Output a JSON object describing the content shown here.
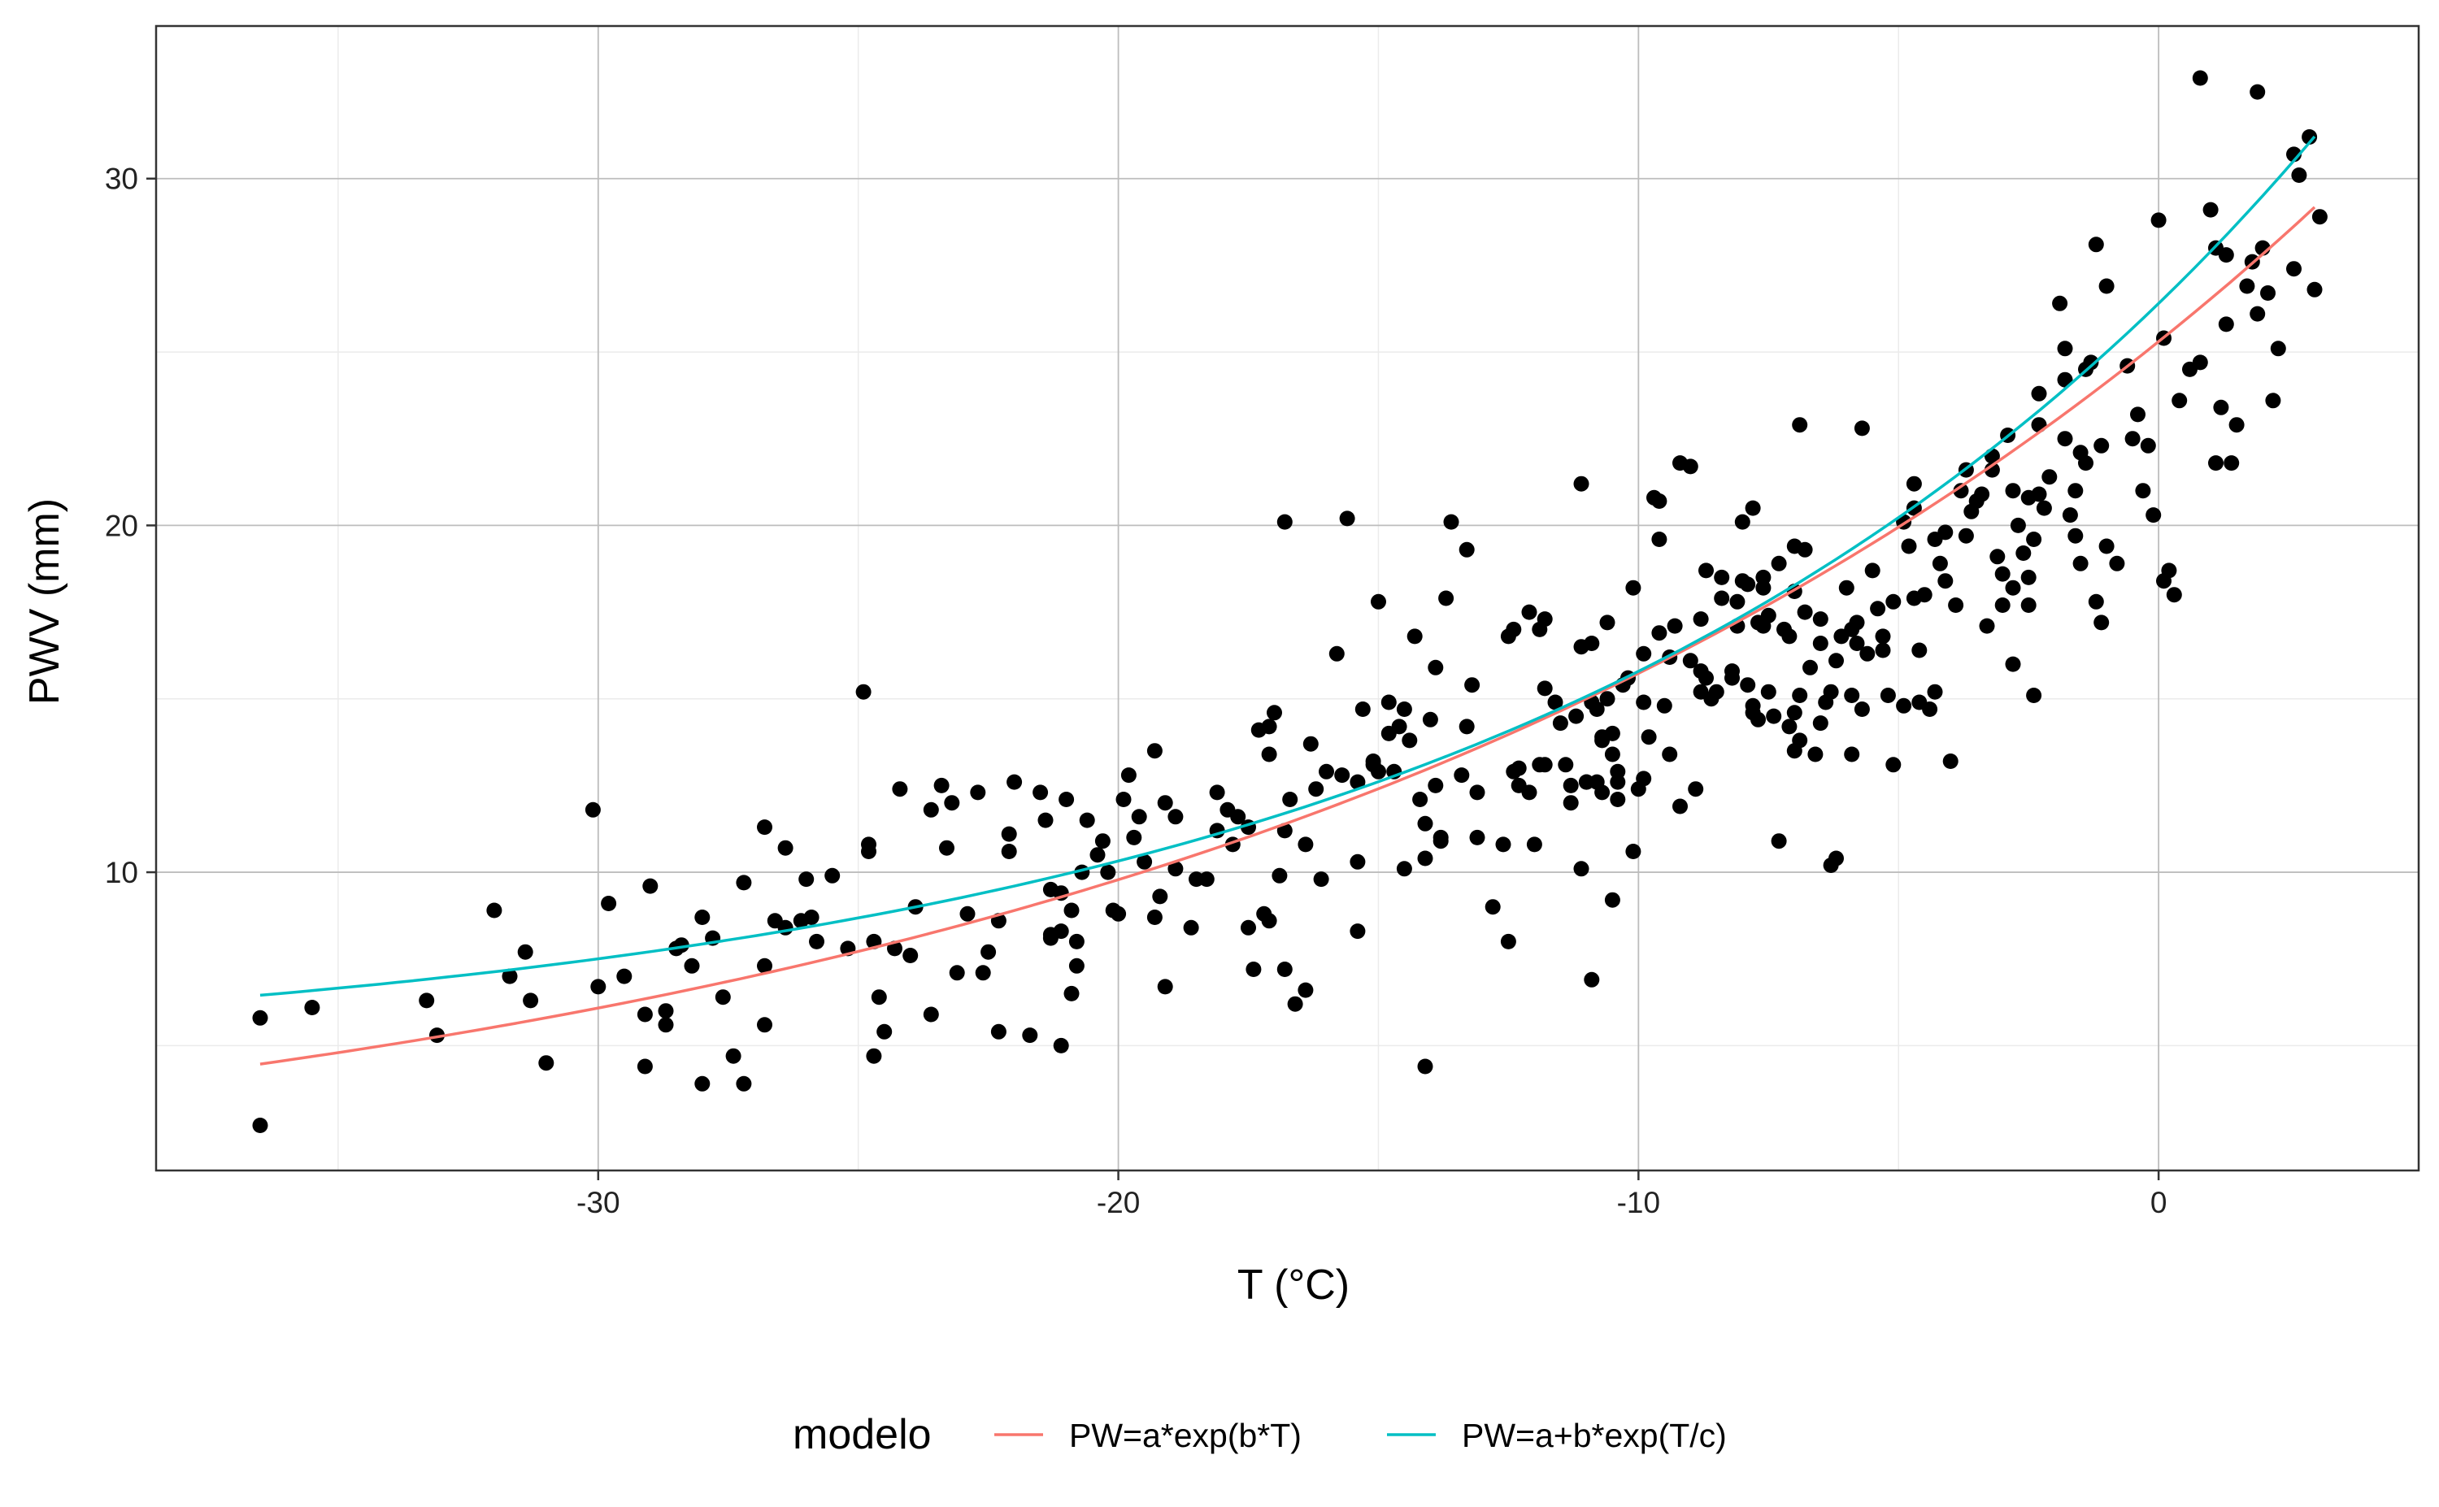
{
  "chart_data": {
    "type": "scatter",
    "xlabel": "T (°C)",
    "ylabel": "PWV (mm)",
    "xlim": [
      -38.5,
      5.0
    ],
    "ylim": [
      1.4,
      34.4
    ],
    "x_ticks": [
      -30,
      -20,
      -10,
      0
    ],
    "x_tick_labels": [
      "-30",
      "-20",
      "-10",
      "0"
    ],
    "y_ticks": [
      10,
      20,
      30
    ],
    "y_tick_labels": [
      "10",
      "20",
      "30"
    ],
    "grid": true,
    "legend": {
      "title": "modelo",
      "position": "bottom",
      "entries": [
        {
          "label": "PW=a*exp(b*T)",
          "color": "#F8766D"
        },
        {
          "label": "PW=a+b*exp(T/c)",
          "color": "#00BFC4"
        }
      ]
    },
    "series": [
      {
        "type": "line",
        "legend_index": 0,
        "color": "#F8766D",
        "formula": "a*exp(b*T)",
        "params": {
          "a": 25.3,
          "b": 0.0475
        },
        "x_range": [
          -36.5,
          3.0
        ]
      },
      {
        "type": "line",
        "legend_index": 1,
        "color": "#00BFC4",
        "formula": "a+b*exp(T/c)",
        "params": {
          "a": 4.5,
          "b": 21.9,
          "c": 15.1
        },
        "x_range": [
          -36.5,
          3.0
        ]
      }
    ],
    "points": [
      [
        -36.5,
        5.8
      ],
      [
        -36.5,
        2.7
      ],
      [
        -35.5,
        6.1
      ],
      [
        -33.3,
        6.3
      ],
      [
        -33.1,
        5.3
      ],
      [
        -32.0,
        8.9
      ],
      [
        -31.7,
        7.0
      ],
      [
        -31.4,
        7.7
      ],
      [
        -31.3,
        6.3
      ],
      [
        -31.0,
        4.5
      ],
      [
        -30.1,
        11.8
      ],
      [
        -30.0,
        6.7
      ],
      [
        -29.8,
        9.1
      ],
      [
        -29.5,
        7.0
      ],
      [
        -29.1,
        5.9
      ],
      [
        -29.1,
        4.4
      ],
      [
        -29.0,
        9.6
      ],
      [
        -28.7,
        5.6
      ],
      [
        -28.7,
        6.0
      ],
      [
        -28.5,
        7.8
      ],
      [
        -28.4,
        7.9
      ],
      [
        -28.2,
        7.3
      ],
      [
        -28.0,
        8.7
      ],
      [
        -28.0,
        3.9
      ],
      [
        -27.8,
        8.1
      ],
      [
        -27.6,
        6.4
      ],
      [
        -27.4,
        4.7
      ],
      [
        -27.2,
        9.7
      ],
      [
        -27.2,
        3.9
      ],
      [
        -26.8,
        7.3
      ],
      [
        -26.8,
        5.6
      ],
      [
        -26.8,
        11.3
      ],
      [
        -26.6,
        8.6
      ],
      [
        -26.4,
        10.7
      ],
      [
        -26.4,
        8.4
      ],
      [
        -26.1,
        8.6
      ],
      [
        -26.0,
        9.8
      ],
      [
        -25.9,
        8.7
      ],
      [
        -25.8,
        8.0
      ],
      [
        -25.5,
        9.9
      ],
      [
        -25.2,
        7.8
      ],
      [
        -24.9,
        15.2
      ],
      [
        -24.8,
        10.8
      ],
      [
        -24.8,
        10.6
      ],
      [
        -24.7,
        8.0
      ],
      [
        -24.7,
        4.7
      ],
      [
        -24.6,
        6.4
      ],
      [
        -24.5,
        5.4
      ],
      [
        -24.3,
        7.8
      ],
      [
        -24.2,
        12.4
      ],
      [
        -24.0,
        7.6
      ],
      [
        -23.9,
        9.0
      ],
      [
        -23.6,
        11.8
      ],
      [
        -23.6,
        5.9
      ],
      [
        -23.4,
        12.5
      ],
      [
        -23.3,
        10.7
      ],
      [
        -23.2,
        12.0
      ],
      [
        -23.1,
        7.1
      ],
      [
        -22.9,
        8.8
      ],
      [
        -22.7,
        12.3
      ],
      [
        -22.6,
        7.1
      ],
      [
        -22.5,
        7.7
      ],
      [
        -22.3,
        8.6
      ],
      [
        -22.3,
        5.4
      ],
      [
        -22.1,
        11.1
      ],
      [
        -22.1,
        10.6
      ],
      [
        -22.0,
        12.6
      ],
      [
        -21.7,
        5.3
      ],
      [
        -21.5,
        12.3
      ],
      [
        -21.4,
        11.5
      ],
      [
        -21.3,
        9.5
      ],
      [
        -21.3,
        8.1
      ],
      [
        -21.3,
        8.2
      ],
      [
        -21.1,
        9.4
      ],
      [
        -21.1,
        8.3
      ],
      [
        -21.1,
        5.0
      ],
      [
        -21.0,
        12.1
      ],
      [
        -20.9,
        8.9
      ],
      [
        -20.9,
        6.5
      ],
      [
        -20.8,
        8.0
      ],
      [
        -20.8,
        7.3
      ],
      [
        -20.7,
        10.0
      ],
      [
        -20.6,
        11.5
      ],
      [
        -20.4,
        10.5
      ],
      [
        -20.3,
        10.9
      ],
      [
        -20.2,
        10.0
      ],
      [
        -20.1,
        8.9
      ],
      [
        -20.0,
        8.8
      ],
      [
        -19.9,
        12.1
      ],
      [
        -19.8,
        12.8
      ],
      [
        -19.7,
        11.0
      ],
      [
        -19.6,
        11.6
      ],
      [
        -19.5,
        10.3
      ],
      [
        -19.3,
        8.7
      ],
      [
        -19.3,
        13.5
      ],
      [
        -19.2,
        9.3
      ],
      [
        -19.1,
        6.7
      ],
      [
        -19.1,
        12.0
      ],
      [
        -18.9,
        11.6
      ],
      [
        -18.9,
        10.1
      ],
      [
        -18.6,
        8.4
      ],
      [
        -18.5,
        9.8
      ],
      [
        -18.3,
        9.8
      ],
      [
        -18.1,
        12.3
      ],
      [
        -18.1,
        11.2
      ],
      [
        -17.9,
        11.8
      ],
      [
        -17.8,
        10.8
      ],
      [
        -17.7,
        11.6
      ],
      [
        -17.5,
        11.3
      ],
      [
        -17.5,
        8.4
      ],
      [
        -17.4,
        7.2
      ],
      [
        -17.3,
        14.1
      ],
      [
        -17.2,
        8.8
      ],
      [
        -17.1,
        14.2
      ],
      [
        -17.1,
        8.6
      ],
      [
        -17.1,
        13.4
      ],
      [
        -17.0,
        14.6
      ],
      [
        -16.9,
        9.9
      ],
      [
        -16.8,
        7.2
      ],
      [
        -16.8,
        11.2
      ],
      [
        -16.8,
        20.1
      ],
      [
        -16.7,
        12.1
      ],
      [
        -16.6,
        6.2
      ],
      [
        -16.4,
        10.8
      ],
      [
        -16.4,
        6.6
      ],
      [
        -16.3,
        13.7
      ],
      [
        -16.2,
        12.4
      ],
      [
        -16.1,
        9.8
      ],
      [
        -16.0,
        12.9
      ],
      [
        -15.8,
        16.3
      ],
      [
        -15.7,
        12.8
      ],
      [
        -15.6,
        20.2
      ],
      [
        -15.4,
        8.3
      ],
      [
        -15.4,
        12.6
      ],
      [
        -15.4,
        10.3
      ],
      [
        -15.3,
        14.7
      ],
      [
        -15.1,
        13.2
      ],
      [
        -15.1,
        13.1
      ],
      [
        -15.0,
        17.8
      ],
      [
        -15.0,
        12.9
      ],
      [
        -14.8,
        14.0
      ],
      [
        -14.8,
        14.9
      ],
      [
        -14.7,
        12.9
      ],
      [
        -14.6,
        14.2
      ],
      [
        -14.5,
        14.7
      ],
      [
        -14.5,
        10.1
      ],
      [
        -14.4,
        13.8
      ],
      [
        -14.3,
        16.8
      ],
      [
        -14.2,
        12.1
      ],
      [
        -14.1,
        11.4
      ],
      [
        -14.1,
        4.4
      ],
      [
        -14.1,
        10.4
      ],
      [
        -14.0,
        14.4
      ],
      [
        -13.9,
        12.5
      ],
      [
        -13.9,
        15.9
      ],
      [
        -13.8,
        10.9
      ],
      [
        -13.8,
        11.0
      ],
      [
        -13.7,
        17.9
      ],
      [
        -13.6,
        20.1
      ],
      [
        -13.4,
        12.8
      ],
      [
        -13.3,
        14.2
      ],
      [
        -13.3,
        19.3
      ],
      [
        -13.2,
        15.4
      ],
      [
        -13.1,
        11.0
      ],
      [
        -13.1,
        12.3
      ],
      [
        -12.8,
        9.0
      ],
      [
        -12.6,
        10.8
      ],
      [
        -12.5,
        16.8
      ],
      [
        -12.5,
        8.0
      ],
      [
        -12.4,
        17.0
      ],
      [
        -12.4,
        12.9
      ],
      [
        -12.3,
        13.0
      ],
      [
        -12.3,
        12.5
      ],
      [
        -12.1,
        17.5
      ],
      [
        -12.1,
        12.3
      ],
      [
        -12.0,
        10.8
      ],
      [
        -11.9,
        17.0
      ],
      [
        -11.9,
        13.1
      ],
      [
        -11.8,
        17.3
      ],
      [
        -11.8,
        15.3
      ],
      [
        -11.8,
        13.1
      ],
      [
        -11.6,
        14.9
      ],
      [
        -11.5,
        14.3
      ],
      [
        -11.4,
        13.1
      ],
      [
        -11.3,
        12.0
      ],
      [
        -11.3,
        12.5
      ],
      [
        -11.2,
        14.5
      ],
      [
        -11.1,
        10.1
      ],
      [
        -11.1,
        16.5
      ],
      [
        -11.1,
        21.2
      ],
      [
        -11.0,
        12.6
      ],
      [
        -11.0,
        12.6
      ],
      [
        -10.9,
        14.9
      ],
      [
        -10.9,
        16.6
      ],
      [
        -10.9,
        6.9
      ],
      [
        -10.8,
        12.6
      ],
      [
        -10.8,
        14.7
      ],
      [
        -10.7,
        13.9
      ],
      [
        -10.7,
        12.3
      ],
      [
        -10.7,
        13.8
      ],
      [
        -10.6,
        15.0
      ],
      [
        -10.6,
        17.2
      ],
      [
        -10.5,
        9.2
      ],
      [
        -10.5,
        13.4
      ],
      [
        -10.5,
        14.0
      ],
      [
        -10.4,
        12.9
      ],
      [
        -10.4,
        12.6
      ],
      [
        -10.4,
        12.1
      ],
      [
        -10.3,
        15.4
      ],
      [
        -10.2,
        15.6
      ],
      [
        -10.1,
        10.6
      ],
      [
        -10.1,
        18.2
      ],
      [
        -10.0,
        12.4
      ],
      [
        -9.9,
        14.9
      ],
      [
        -9.9,
        16.3
      ],
      [
        -9.9,
        12.7
      ],
      [
        -9.8,
        13.9
      ],
      [
        -9.7,
        20.8
      ],
      [
        -9.6,
        19.6
      ],
      [
        -9.6,
        16.9
      ],
      [
        -9.6,
        20.7
      ],
      [
        -9.5,
        14.8
      ],
      [
        -9.4,
        16.2
      ],
      [
        -9.4,
        13.4
      ],
      [
        -9.3,
        17.1
      ],
      [
        -9.2,
        11.9
      ],
      [
        -9.2,
        21.8
      ],
      [
        -9.0,
        21.7
      ],
      [
        -9.0,
        16.1
      ],
      [
        -8.9,
        12.4
      ],
      [
        -8.8,
        15.2
      ],
      [
        -8.8,
        17.3
      ],
      [
        -8.8,
        15.8
      ],
      [
        -8.7,
        15.6
      ],
      [
        -8.7,
        18.7
      ],
      [
        -8.6,
        15.0
      ],
      [
        -8.5,
        15.2
      ],
      [
        -8.4,
        17.9
      ],
      [
        -8.4,
        18.5
      ],
      [
        -8.2,
        15.8
      ],
      [
        -8.2,
        15.6
      ],
      [
        -8.1,
        17.1
      ],
      [
        -8.1,
        17.8
      ],
      [
        -8.0,
        18.4
      ],
      [
        -7.9,
        15.4
      ],
      [
        -7.9,
        18.3
      ],
      [
        -7.8,
        14.8
      ],
      [
        -7.8,
        14.6
      ],
      [
        -7.8,
        20.5
      ],
      [
        -7.7,
        17.2
      ],
      [
        -7.7,
        14.4
      ],
      [
        -7.6,
        18.2
      ],
      [
        -7.6,
        18.5
      ],
      [
        -7.6,
        17.1
      ],
      [
        -7.5,
        17.4
      ],
      [
        -7.5,
        15.2
      ],
      [
        -7.4,
        14.5
      ],
      [
        -7.3,
        18.9
      ],
      [
        -7.3,
        10.9
      ],
      [
        -7.2,
        17.0
      ],
      [
        -7.1,
        14.2
      ],
      [
        -7.1,
        16.8
      ],
      [
        -7.0,
        14.6
      ],
      [
        -7.0,
        19.4
      ],
      [
        -7.0,
        13.5
      ],
      [
        -7.0,
        18.1
      ],
      [
        -6.9,
        22.9
      ],
      [
        -6.9,
        13.8
      ],
      [
        -6.9,
        15.1
      ],
      [
        -6.8,
        17.5
      ],
      [
        -6.8,
        19.3
      ],
      [
        -6.7,
        15.9
      ],
      [
        -6.6,
        13.4
      ],
      [
        -6.5,
        17.3
      ],
      [
        -6.5,
        14.3
      ],
      [
        -6.5,
        16.6
      ],
      [
        -6.4,
        14.9
      ],
      [
        -6.3,
        15.2
      ],
      [
        -6.3,
        10.2
      ],
      [
        -6.2,
        10.4
      ],
      [
        -6.2,
        16.1
      ],
      [
        -6.1,
        16.8
      ],
      [
        -6.0,
        18.2
      ],
      [
        -5.9,
        17.0
      ],
      [
        -5.9,
        15.1
      ],
      [
        -5.9,
        13.4
      ],
      [
        -5.8,
        16.6
      ],
      [
        -5.8,
        17.2
      ],
      [
        -5.7,
        14.7
      ],
      [
        -5.7,
        22.8
      ],
      [
        -5.6,
        16.3
      ],
      [
        -5.5,
        18.7
      ],
      [
        -5.4,
        17.6
      ],
      [
        -5.3,
        16.4
      ],
      [
        -5.3,
        16.8
      ],
      [
        -5.2,
        15.1
      ],
      [
        -5.1,
        17.8
      ],
      [
        -5.1,
        13.1
      ],
      [
        -4.9,
        20.1
      ],
      [
        -4.9,
        14.8
      ],
      [
        -4.8,
        19.4
      ],
      [
        -4.7,
        21.2
      ],
      [
        -4.7,
        20.5
      ],
      [
        -4.7,
        17.9
      ],
      [
        -4.6,
        16.4
      ],
      [
        -4.6,
        14.9
      ],
      [
        -4.5,
        18.0
      ],
      [
        -4.4,
        14.7
      ],
      [
        -4.3,
        19.6
      ],
      [
        -4.3,
        15.2
      ],
      [
        -4.2,
        18.9
      ],
      [
        -4.1,
        19.8
      ],
      [
        -4.1,
        18.4
      ],
      [
        -4.0,
        13.2
      ],
      [
        -3.9,
        17.7
      ],
      [
        -3.8,
        21.0
      ],
      [
        -3.7,
        21.6
      ],
      [
        -3.7,
        19.7
      ],
      [
        -3.6,
        20.4
      ],
      [
        -3.5,
        20.7
      ],
      [
        -3.4,
        20.9
      ],
      [
        -3.3,
        17.1
      ],
      [
        -3.2,
        22.0
      ],
      [
        -3.2,
        21.6
      ],
      [
        -3.1,
        19.1
      ],
      [
        -3.0,
        17.7
      ],
      [
        -3.0,
        18.6
      ],
      [
        -2.9,
        22.6
      ],
      [
        -2.8,
        16.0
      ],
      [
        -2.8,
        21.0
      ],
      [
        -2.8,
        18.2
      ],
      [
        -2.7,
        20.0
      ],
      [
        -2.6,
        19.2
      ],
      [
        -2.5,
        17.7
      ],
      [
        -2.5,
        20.8
      ],
      [
        -2.5,
        18.5
      ],
      [
        -2.4,
        15.1
      ],
      [
        -2.4,
        19.6
      ],
      [
        -2.3,
        22.9
      ],
      [
        -2.3,
        20.9
      ],
      [
        -2.3,
        23.8
      ],
      [
        -2.2,
        20.5
      ],
      [
        -2.1,
        21.4
      ],
      [
        -1.9,
        26.4
      ],
      [
        -1.8,
        24.2
      ],
      [
        -1.8,
        22.5
      ],
      [
        -1.8,
        25.1
      ],
      [
        -1.7,
        20.3
      ],
      [
        -1.6,
        19.7
      ],
      [
        -1.6,
        21.0
      ],
      [
        -1.5,
        18.9
      ],
      [
        -1.5,
        22.1
      ],
      [
        -1.4,
        21.8
      ],
      [
        -1.4,
        24.5
      ],
      [
        -1.3,
        24.7
      ],
      [
        -1.2,
        17.8
      ],
      [
        -1.2,
        28.1
      ],
      [
        -1.1,
        22.3
      ],
      [
        -1.1,
        17.2
      ],
      [
        -1.0,
        19.4
      ],
      [
        -1.0,
        26.9
      ],
      [
        -0.8,
        18.9
      ],
      [
        -0.6,
        24.6
      ],
      [
        -0.5,
        22.5
      ],
      [
        -0.4,
        23.2
      ],
      [
        -0.3,
        21.0
      ],
      [
        -0.2,
        22.3
      ],
      [
        -0.1,
        20.3
      ],
      [
        0.0,
        28.8
      ],
      [
        0.1,
        25.4
      ],
      [
        0.1,
        18.4
      ],
      [
        0.2,
        18.7
      ],
      [
        0.3,
        18.0
      ],
      [
        0.4,
        23.6
      ],
      [
        0.6,
        24.5
      ],
      [
        0.8,
        24.7
      ],
      [
        0.8,
        32.9
      ],
      [
        1.0,
        29.1
      ],
      [
        1.1,
        21.8
      ],
      [
        1.1,
        28.0
      ],
      [
        1.2,
        23.4
      ],
      [
        1.3,
        27.8
      ],
      [
        1.3,
        25.8
      ],
      [
        1.4,
        21.8
      ],
      [
        1.5,
        22.9
      ],
      [
        1.7,
        26.9
      ],
      [
        1.8,
        27.6
      ],
      [
        1.9,
        32.5
      ],
      [
        1.9,
        26.1
      ],
      [
        2.0,
        28.0
      ],
      [
        2.1,
        26.7
      ],
      [
        2.2,
        23.6
      ],
      [
        2.3,
        25.1
      ],
      [
        2.6,
        27.4
      ],
      [
        2.7,
        30.1
      ],
      [
        2.9,
        31.2
      ],
      [
        3.0,
        26.8
      ],
      [
        2.6,
        30.7
      ],
      [
        3.1,
        28.9
      ],
      [
        -8.0,
        20.1
      ]
    ]
  }
}
